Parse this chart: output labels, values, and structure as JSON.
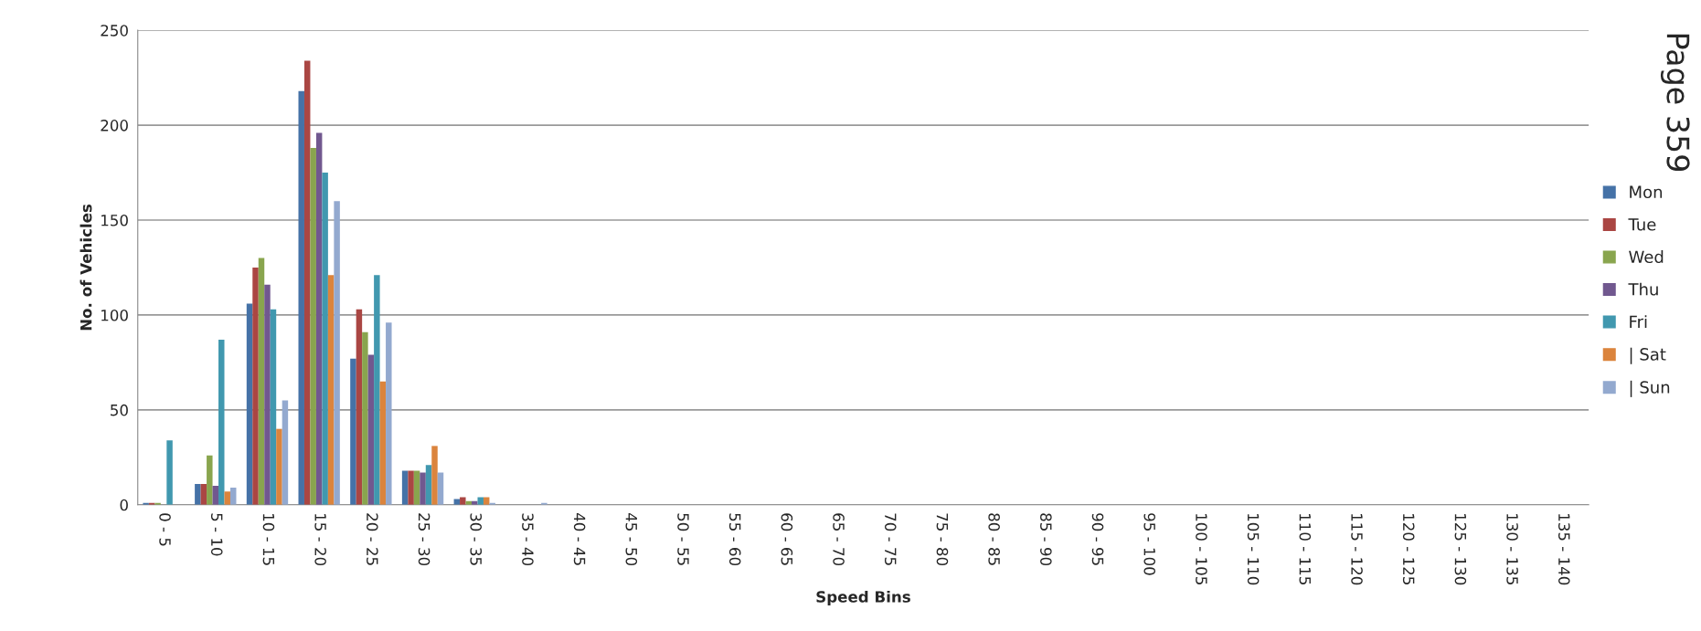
{
  "chart_data": {
    "type": "bar",
    "xlabel": "Speed Bins",
    "ylabel": "No. of Vehicles",
    "categories": [
      "0 - 5",
      "5 - 10",
      "10 - 15",
      "15 - 20",
      "20 - 25",
      "25 - 30",
      "30 - 35",
      "35 - 40",
      "40 - 45",
      "45 - 50",
      "50 - 55",
      "55 - 60",
      "60 - 65",
      "65 - 70",
      "70 - 75",
      "75 - 80",
      "80 - 85",
      "85 - 90",
      "90 - 95",
      "95 - 100",
      "100 - 105",
      "105 - 110",
      "110 - 115",
      "115 - 120",
      "120 - 125",
      "125 - 130",
      "130 - 135",
      "135 - 140"
    ],
    "series": [
      {
        "name": "Mon",
        "color": "#4572a7",
        "values": [
          1,
          11,
          106,
          218,
          77,
          18,
          3,
          0,
          0,
          0,
          0,
          0,
          0,
          0,
          0,
          0,
          0,
          0,
          0,
          0,
          0,
          0,
          0,
          0,
          0,
          0,
          0,
          0
        ]
      },
      {
        "name": "Tue",
        "color": "#aa4643",
        "values": [
          1,
          11,
          125,
          234,
          103,
          18,
          4,
          0,
          0,
          0,
          0,
          0,
          0,
          0,
          0,
          0,
          0,
          0,
          0,
          0,
          0,
          0,
          0,
          0,
          0,
          0,
          0,
          0
        ]
      },
      {
        "name": "Wed",
        "color": "#89a54e",
        "values": [
          1,
          26,
          130,
          188,
          91,
          18,
          2,
          0,
          0,
          0,
          0,
          0,
          0,
          0,
          0,
          0,
          0,
          0,
          0,
          0,
          0,
          0,
          0,
          0,
          0,
          0,
          0,
          0
        ]
      },
      {
        "name": "Thu",
        "color": "#71588f",
        "values": [
          0,
          10,
          116,
          196,
          79,
          17,
          2,
          0,
          0,
          0,
          0,
          0,
          0,
          0,
          0,
          0,
          0,
          0,
          0,
          0,
          0,
          0,
          0,
          0,
          0,
          0,
          0,
          0
        ]
      },
      {
        "name": "Fri",
        "color": "#4198af",
        "values": [
          34,
          87,
          103,
          175,
          121,
          21,
          4,
          0,
          0,
          0,
          0,
          0,
          0,
          0,
          0,
          0,
          0,
          0,
          0,
          0,
          0,
          0,
          0,
          0,
          0,
          0,
          0,
          0
        ]
      },
      {
        "name": "| Sat",
        "color": "#db843d",
        "values": [
          0,
          7,
          40,
          121,
          65,
          31,
          4,
          0,
          0,
          0,
          0,
          0,
          0,
          0,
          0,
          0,
          0,
          0,
          0,
          0,
          0,
          0,
          0,
          0,
          0,
          0,
          0,
          0
        ]
      },
      {
        "name": "| Sun",
        "color": "#93a9cf",
        "values": [
          0,
          9,
          55,
          160,
          96,
          17,
          1,
          1,
          0,
          0,
          0,
          0,
          0,
          0,
          0,
          0,
          0,
          0,
          0,
          0,
          0,
          0,
          0,
          0,
          0,
          0,
          0,
          0
        ]
      }
    ],
    "ylim": [
      0,
      250
    ],
    "yticks": [
      0,
      50,
      100,
      150,
      200,
      250
    ],
    "grid": "y",
    "legend": "right",
    "annotations": [
      "Page 359"
    ]
  }
}
